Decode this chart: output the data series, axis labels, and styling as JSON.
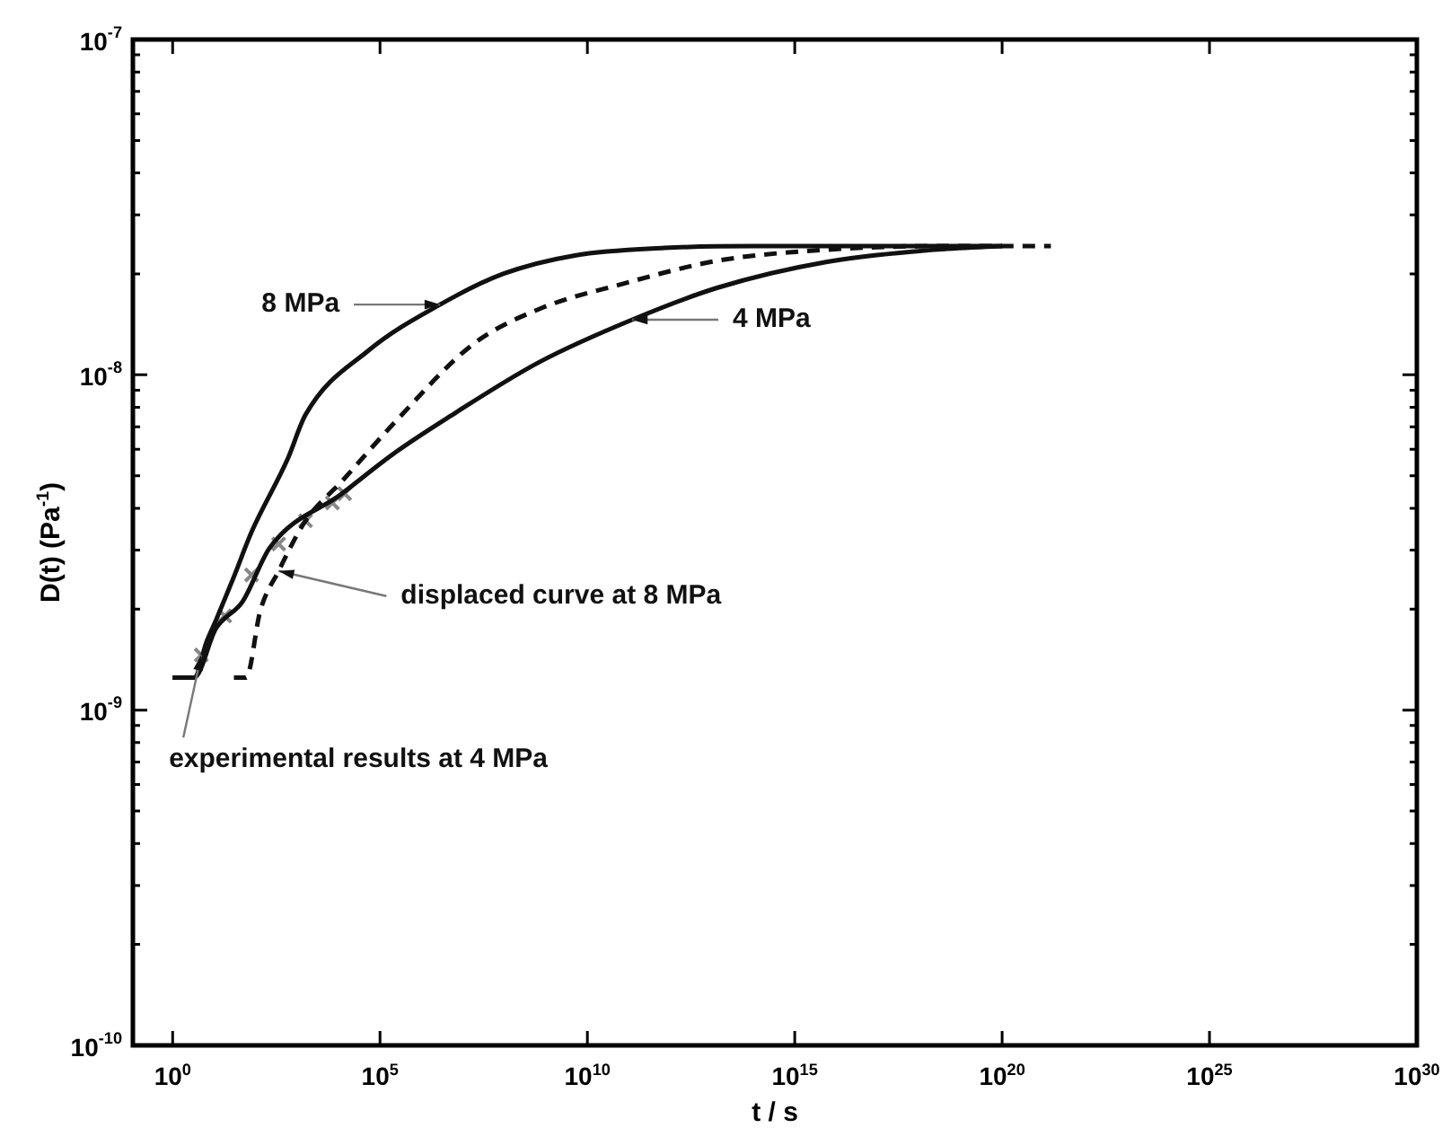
{
  "chart_data": {
    "type": "line",
    "xlabel": "t / s",
    "ylabel": "D(t) (Pa$^{-1}$)",
    "log": "xy",
    "grid": false,
    "legend": false,
    "marker": "none",
    "xlim": [
      0.11,
      1e+30
    ],
    "ylim": [
      1e-10,
      1e-07
    ],
    "xticks": [
      {
        "value": 1,
        "label": "10$^{0}$"
      },
      {
        "value": 100000.0,
        "label": "10$^{5}$"
      },
      {
        "value": 10000000000.0,
        "label": "10$^{10}$"
      },
      {
        "value": 1000000000000000.0,
        "label": "10$^{15}$"
      },
      {
        "value": 1e+20,
        "label": "10$^{20}$"
      },
      {
        "value": 1e+25,
        "label": "10$^{25}$"
      },
      {
        "value": 1e+30,
        "label": "10$^{30}$"
      }
    ],
    "yticks": [
      {
        "value": 1e-10,
        "label": "10$^{-10}$"
      },
      {
        "value": 2e-10,
        "label": null
      },
      {
        "value": 3e-10,
        "label": null
      },
      {
        "value": 4e-10,
        "label": null
      },
      {
        "value": 5e-10,
        "label": null
      },
      {
        "value": 6e-10,
        "label": null
      },
      {
        "value": 7e-10,
        "label": null
      },
      {
        "value": 8e-10,
        "label": null
      },
      {
        "value": 9e-10,
        "label": null
      },
      {
        "value": 1e-09,
        "label": "10$^{-9}$"
      },
      {
        "value": 2e-09,
        "label": null
      },
      {
        "value": 3e-09,
        "label": null
      },
      {
        "value": 4e-09,
        "label": null
      },
      {
        "value": 5e-09,
        "label": null
      },
      {
        "value": 6e-09,
        "label": null
      },
      {
        "value": 7e-09,
        "label": null
      },
      {
        "value": 8e-09,
        "label": null
      },
      {
        "value": 9e-09,
        "label": null
      },
      {
        "value": 1e-08,
        "label": "10$^{-8}$"
      },
      {
        "value": 2e-08,
        "label": null
      },
      {
        "value": 3e-08,
        "label": null
      },
      {
        "value": 4e-08,
        "label": null
      },
      {
        "value": 5e-08,
        "label": null
      },
      {
        "value": 6e-08,
        "label": null
      },
      {
        "value": 7e-08,
        "label": null
      },
      {
        "value": 8e-08,
        "label": null
      },
      {
        "value": 9e-08,
        "label": null
      },
      {
        "value": 1e-07,
        "label": "10$^{-7}$"
      }
    ],
    "series": [
      {
        "color": "#111111",
        "x": [
          1,
          3.3,
          6.6,
          11,
          30,
          80,
          590,
          1600,
          52000.0,
          2800000.0,
          93000000.0,
          5000000000.0,
          720000000000.0,
          110000000000000.0,
          1e+20
        ],
        "values": [
          1.25e-09,
          1.25e-09,
          1.6e-09,
          1.85e-09,
          2.5e-09,
          3.4e-09,
          5.6e-09,
          7.6e-09,
          1.18e-08,
          1.62e-08,
          2e-08,
          2.27e-08,
          2.39e-08,
          2.42e-08,
          2.42e-08
        ]
      },
      {
        "color": "#111111",
        "x": [
          1,
          3.3,
          11,
          49,
          220,
          12000.0,
          230000.0,
          4700000.0,
          680000000.0,
          120000000000.0,
          14000000000000.0,
          5700000000000000.0,
          2.3e+18,
          1e+20
        ],
        "values": [
          1.25e-09,
          1.25e-09,
          1.75e-09,
          2.11e-09,
          3.05e-09,
          4.42e-09,
          5.86e-09,
          7.5e-09,
          1.09e-08,
          1.46e-08,
          1.82e-08,
          2.17e-08,
          2.36e-08,
          2.42e-08
        ]
      },
      {
        "color": "#111111",
        "line_style": "dashed",
        "x": [
          30,
          59,
          130,
          360,
          1600,
          12000.0,
          230000.0,
          17000000.0,
          680000000.0,
          74000000000.0,
          14000000000000.0,
          5700000000000000.0,
          2.3e+18,
          1.5e+21
        ],
        "values": [
          1.25e-09,
          1.25e-09,
          1.98e-09,
          2.6e-09,
          3.67e-09,
          4.81e-09,
          7.23e-09,
          1.23e-08,
          1.57e-08,
          1.87e-08,
          2.19e-08,
          2.36e-08,
          2.42e-08,
          2.42e-08
        ]
      },
      {
        "type": "scatter",
        "marker": "cross",
        "color": "#888888",
        "x": [
          4.9,
          18,
          80,
          360,
          1600,
          7100,
          14000.0
        ],
        "values": [
          1.46e-09,
          1.91e-09,
          2.53e-09,
          3.13e-09,
          3.67e-09,
          4.15e-09,
          4.42e-09
        ]
      }
    ],
    "annotations": [
      {
        "text": "8 MPa",
        "x": 2800000.0,
        "y": 1.62e-08
      },
      {
        "text": "4 MPa",
        "x": 120000000000.0,
        "y": 1.46e-08
      },
      {
        "text": "displaced curve at 8 MPa",
        "x": 360,
        "y": 2.6e-09
      },
      {
        "text": "experimental results at 4 MPa",
        "x": 4.9,
        "y": 1.46e-09
      }
    ]
  }
}
